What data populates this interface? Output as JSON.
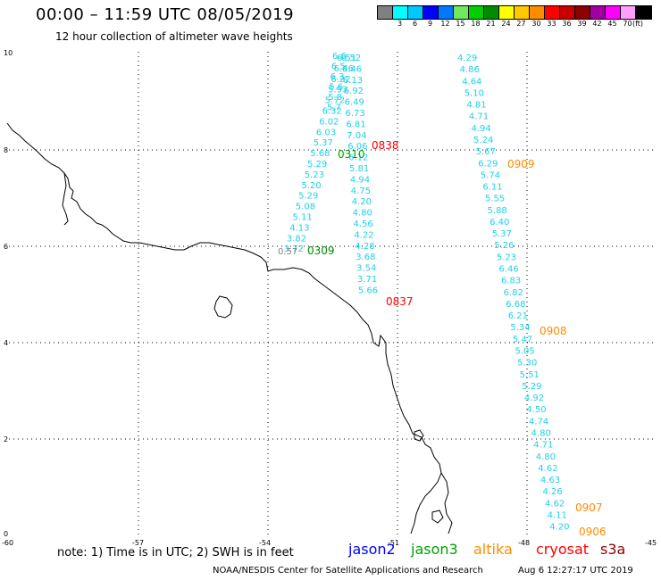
{
  "header": {
    "title": "00:00 – 11:59 UTC 08/05/2019",
    "subtitle": "12 hour collection of altimeter wave heights"
  },
  "legend": {
    "colors": [
      "#808080",
      "#00ffff",
      "#00c8ff",
      "#0000ff",
      "#0078ff",
      "#70e860",
      "#00d000",
      "#008c00",
      "#ffff00",
      "#ffc800",
      "#ff8c00",
      "#ff0000",
      "#c80000",
      "#8c0000",
      "#a000a0",
      "#ff00ff",
      "#ffa0ff",
      "#000000"
    ],
    "labels": [
      "3",
      "6",
      "9",
      "12",
      "15",
      "18",
      "21",
      "24",
      "27",
      "30",
      "33",
      "36",
      "39",
      "42",
      "45",
      "70"
    ],
    "unit": "(ft)"
  },
  "axes": {
    "x_ticks": [
      "-60",
      "-57",
      "-54",
      "-51",
      "-48",
      "-45"
    ],
    "y_ticks": [
      "10",
      "8",
      "6",
      "4",
      "2",
      "0"
    ]
  },
  "tracks": {
    "west": {
      "color": "#1ed2e6",
      "values": [
        "6.51",
        "6.46",
        "6.22",
        "5.93",
        "5.72",
        "6.32",
        "6.02",
        "6.03",
        "5.37",
        "5.68",
        "5.29",
        "5.23",
        "5.20",
        "5.29",
        "5.08",
        "5.11",
        "4.13",
        "3.82",
        "3.72"
      ],
      "gray_value": "0.57"
    },
    "west_overlay": {
      "color": "#1ed2e6",
      "values": [
        "6.6",
        "6.5",
        "6.3",
        "5.6",
        "5.8",
        "5.7"
      ]
    },
    "center": {
      "color": "#1ed2e6",
      "values": [
        "6.52",
        "6.46",
        "6.13",
        "6.92",
        "6.49",
        "6.73",
        "6.81",
        "7.04",
        "6.06",
        "6.12",
        "5.81",
        "4.94",
        "4.75",
        "4.20",
        "4.80",
        "4.56",
        "4.22",
        "4.28",
        "3.68",
        "3.54",
        "3.71",
        "5.66"
      ]
    },
    "east": {
      "color": "#1ed2e6",
      "values": [
        "4.29",
        "4.86",
        "4.64",
        "5.10",
        "4.81",
        "4.71",
        "4.94",
        "5.24",
        "5.67",
        "6.29",
        "5.74",
        "6.11",
        "5.55",
        "5.88",
        "6.40",
        "5.37",
        "5.26",
        "5.23",
        "6.46",
        "6.83",
        "6.82",
        "6.68",
        "6.21",
        "5.34",
        "5.47",
        "5.05",
        "5.30",
        "5.51",
        "5.29",
        "4.92",
        "4.50",
        "4.74",
        "4.80",
        "4.71",
        "4.80",
        "4.62",
        "4.63",
        "4.26",
        "4.62",
        "4.11",
        "4.20"
      ]
    },
    "time_labels": [
      {
        "text": "0838",
        "color": "#ff0000"
      },
      {
        "text": "0310",
        "color": "#00a000"
      },
      {
        "text": "0309",
        "color": "#008c00"
      },
      {
        "text": "0837",
        "color": "#ff0000"
      },
      {
        "text": "0909",
        "color": "#ff8c00"
      },
      {
        "text": "0908",
        "color": "#ff8c00"
      },
      {
        "text": "0907",
        "color": "#ff8c00"
      },
      {
        "text": "0906",
        "color": "#ff8c00"
      }
    ]
  },
  "footer": {
    "note": "note: 1) Time is in UTC; 2) SWH is in feet",
    "satellites": [
      {
        "name": "jason2",
        "color": "#0000ff"
      },
      {
        "name": "jason3",
        "color": "#00a000"
      },
      {
        "name": "altika",
        "color": "#ff8c00"
      },
      {
        "name": "cryosat",
        "color": "#ff0000"
      },
      {
        "name": "s3a",
        "color": "#8b0000"
      }
    ],
    "credit": "NOAA/NESDIS Center for Satellite Applications and Research",
    "timestamp": "Aug  6 12:27:17 UTC 2019"
  }
}
